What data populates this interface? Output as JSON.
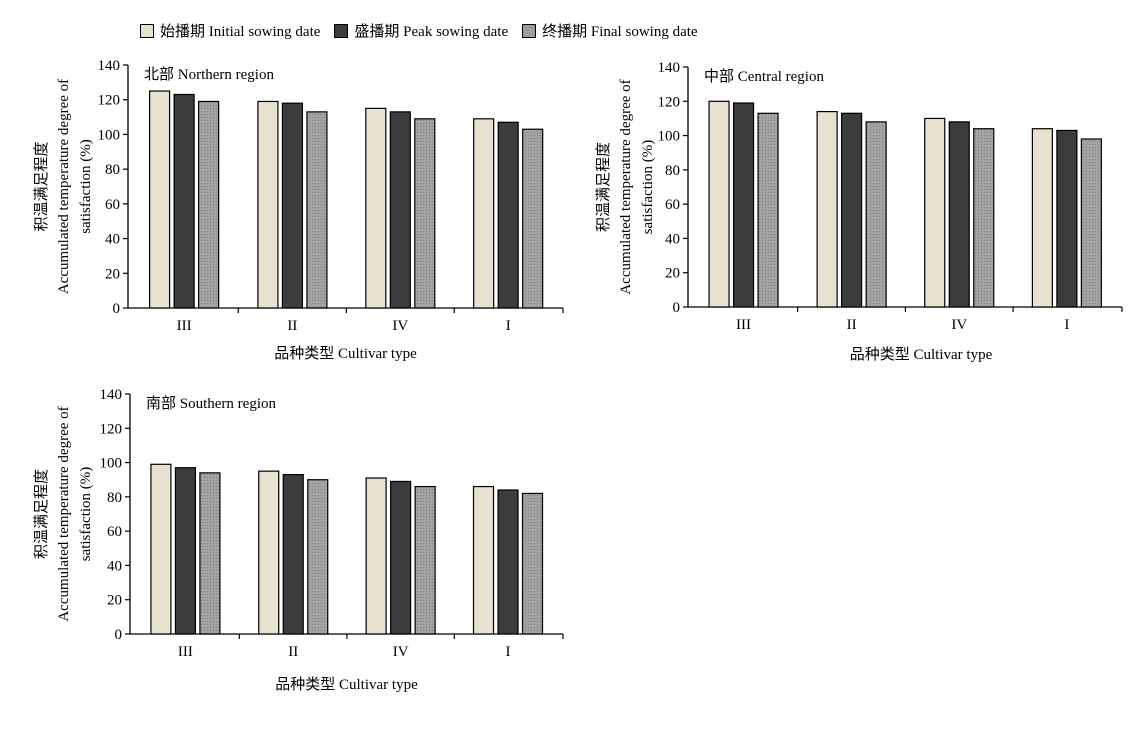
{
  "legend": {
    "items": [
      {
        "label": "始播期 Initial sowing date",
        "color": "#e6e2cf"
      },
      {
        "label": "盛播期 Peak sowing date",
        "color": "#3c3c3c"
      },
      {
        "label": "终播期 Final sowing date",
        "color": "#9c9c9c"
      }
    ]
  },
  "chart_data": [
    {
      "type": "bar",
      "title": "北部 Northern region",
      "categories": [
        "III",
        "II",
        "IV",
        "I"
      ],
      "series": [
        {
          "name": "始播期 Initial sowing date",
          "values": [
            125,
            119,
            115,
            109
          ],
          "color": "#e6e2cf"
        },
        {
          "name": "盛播期 Peak sowing date",
          "values": [
            123,
            118,
            113,
            107
          ],
          "color": "#3c3c3c"
        },
        {
          "name": "终播期 Final sowing date",
          "values": [
            119,
            113,
            109,
            103
          ],
          "color": "#9c9c9c"
        }
      ],
      "xlabel": "品种类型 Cultivar type",
      "ylabel_lines": [
        "积温满足程度",
        "Accumulated temperature degree of",
        "satisfaction (%)"
      ],
      "ylim": [
        0,
        140
      ],
      "yticks": [
        0,
        20,
        40,
        60,
        80,
        100,
        120,
        140
      ],
      "grid": false
    },
    {
      "type": "bar",
      "title": "中部 Central region",
      "categories": [
        "III",
        "II",
        "IV",
        "I"
      ],
      "series": [
        {
          "name": "始播期 Initial sowing date",
          "values": [
            120,
            114,
            110,
            104
          ],
          "color": "#e6e2cf"
        },
        {
          "name": "盛播期 Peak sowing date",
          "values": [
            119,
            113,
            108,
            103
          ],
          "color": "#3c3c3c"
        },
        {
          "name": "终播期 Final sowing date",
          "values": [
            113,
            108,
            104,
            98
          ],
          "color": "#9c9c9c"
        }
      ],
      "xlabel": "品种类型 Cultivar type",
      "ylabel_lines": [
        "积温满足程度",
        "Accumulated temperature degree of",
        "satisfaction (%)"
      ],
      "ylim": [
        0,
        140
      ],
      "yticks": [
        0,
        20,
        40,
        60,
        80,
        100,
        120,
        140
      ],
      "grid": false
    },
    {
      "type": "bar",
      "title": "南部 Southern region",
      "categories": [
        "III",
        "II",
        "IV",
        "I"
      ],
      "series": [
        {
          "name": "始播期 Initial sowing date",
          "values": [
            99,
            95,
            91,
            86
          ],
          "color": "#e6e2cf"
        },
        {
          "name": "盛播期 Peak sowing date",
          "values": [
            97,
            93,
            89,
            84
          ],
          "color": "#3c3c3c"
        },
        {
          "name": "终播期 Final sowing date",
          "values": [
            94,
            90,
            86,
            82
          ],
          "color": "#9c9c9c"
        }
      ],
      "xlabel": "品种类型 Cultivar type",
      "ylabel_lines": [
        "积温满足程度",
        "Accumulated temperature degree of",
        "satisfaction (%)"
      ],
      "ylim": [
        0,
        140
      ],
      "yticks": [
        0,
        20,
        40,
        60,
        80,
        100,
        120,
        140
      ],
      "grid": false
    }
  ]
}
